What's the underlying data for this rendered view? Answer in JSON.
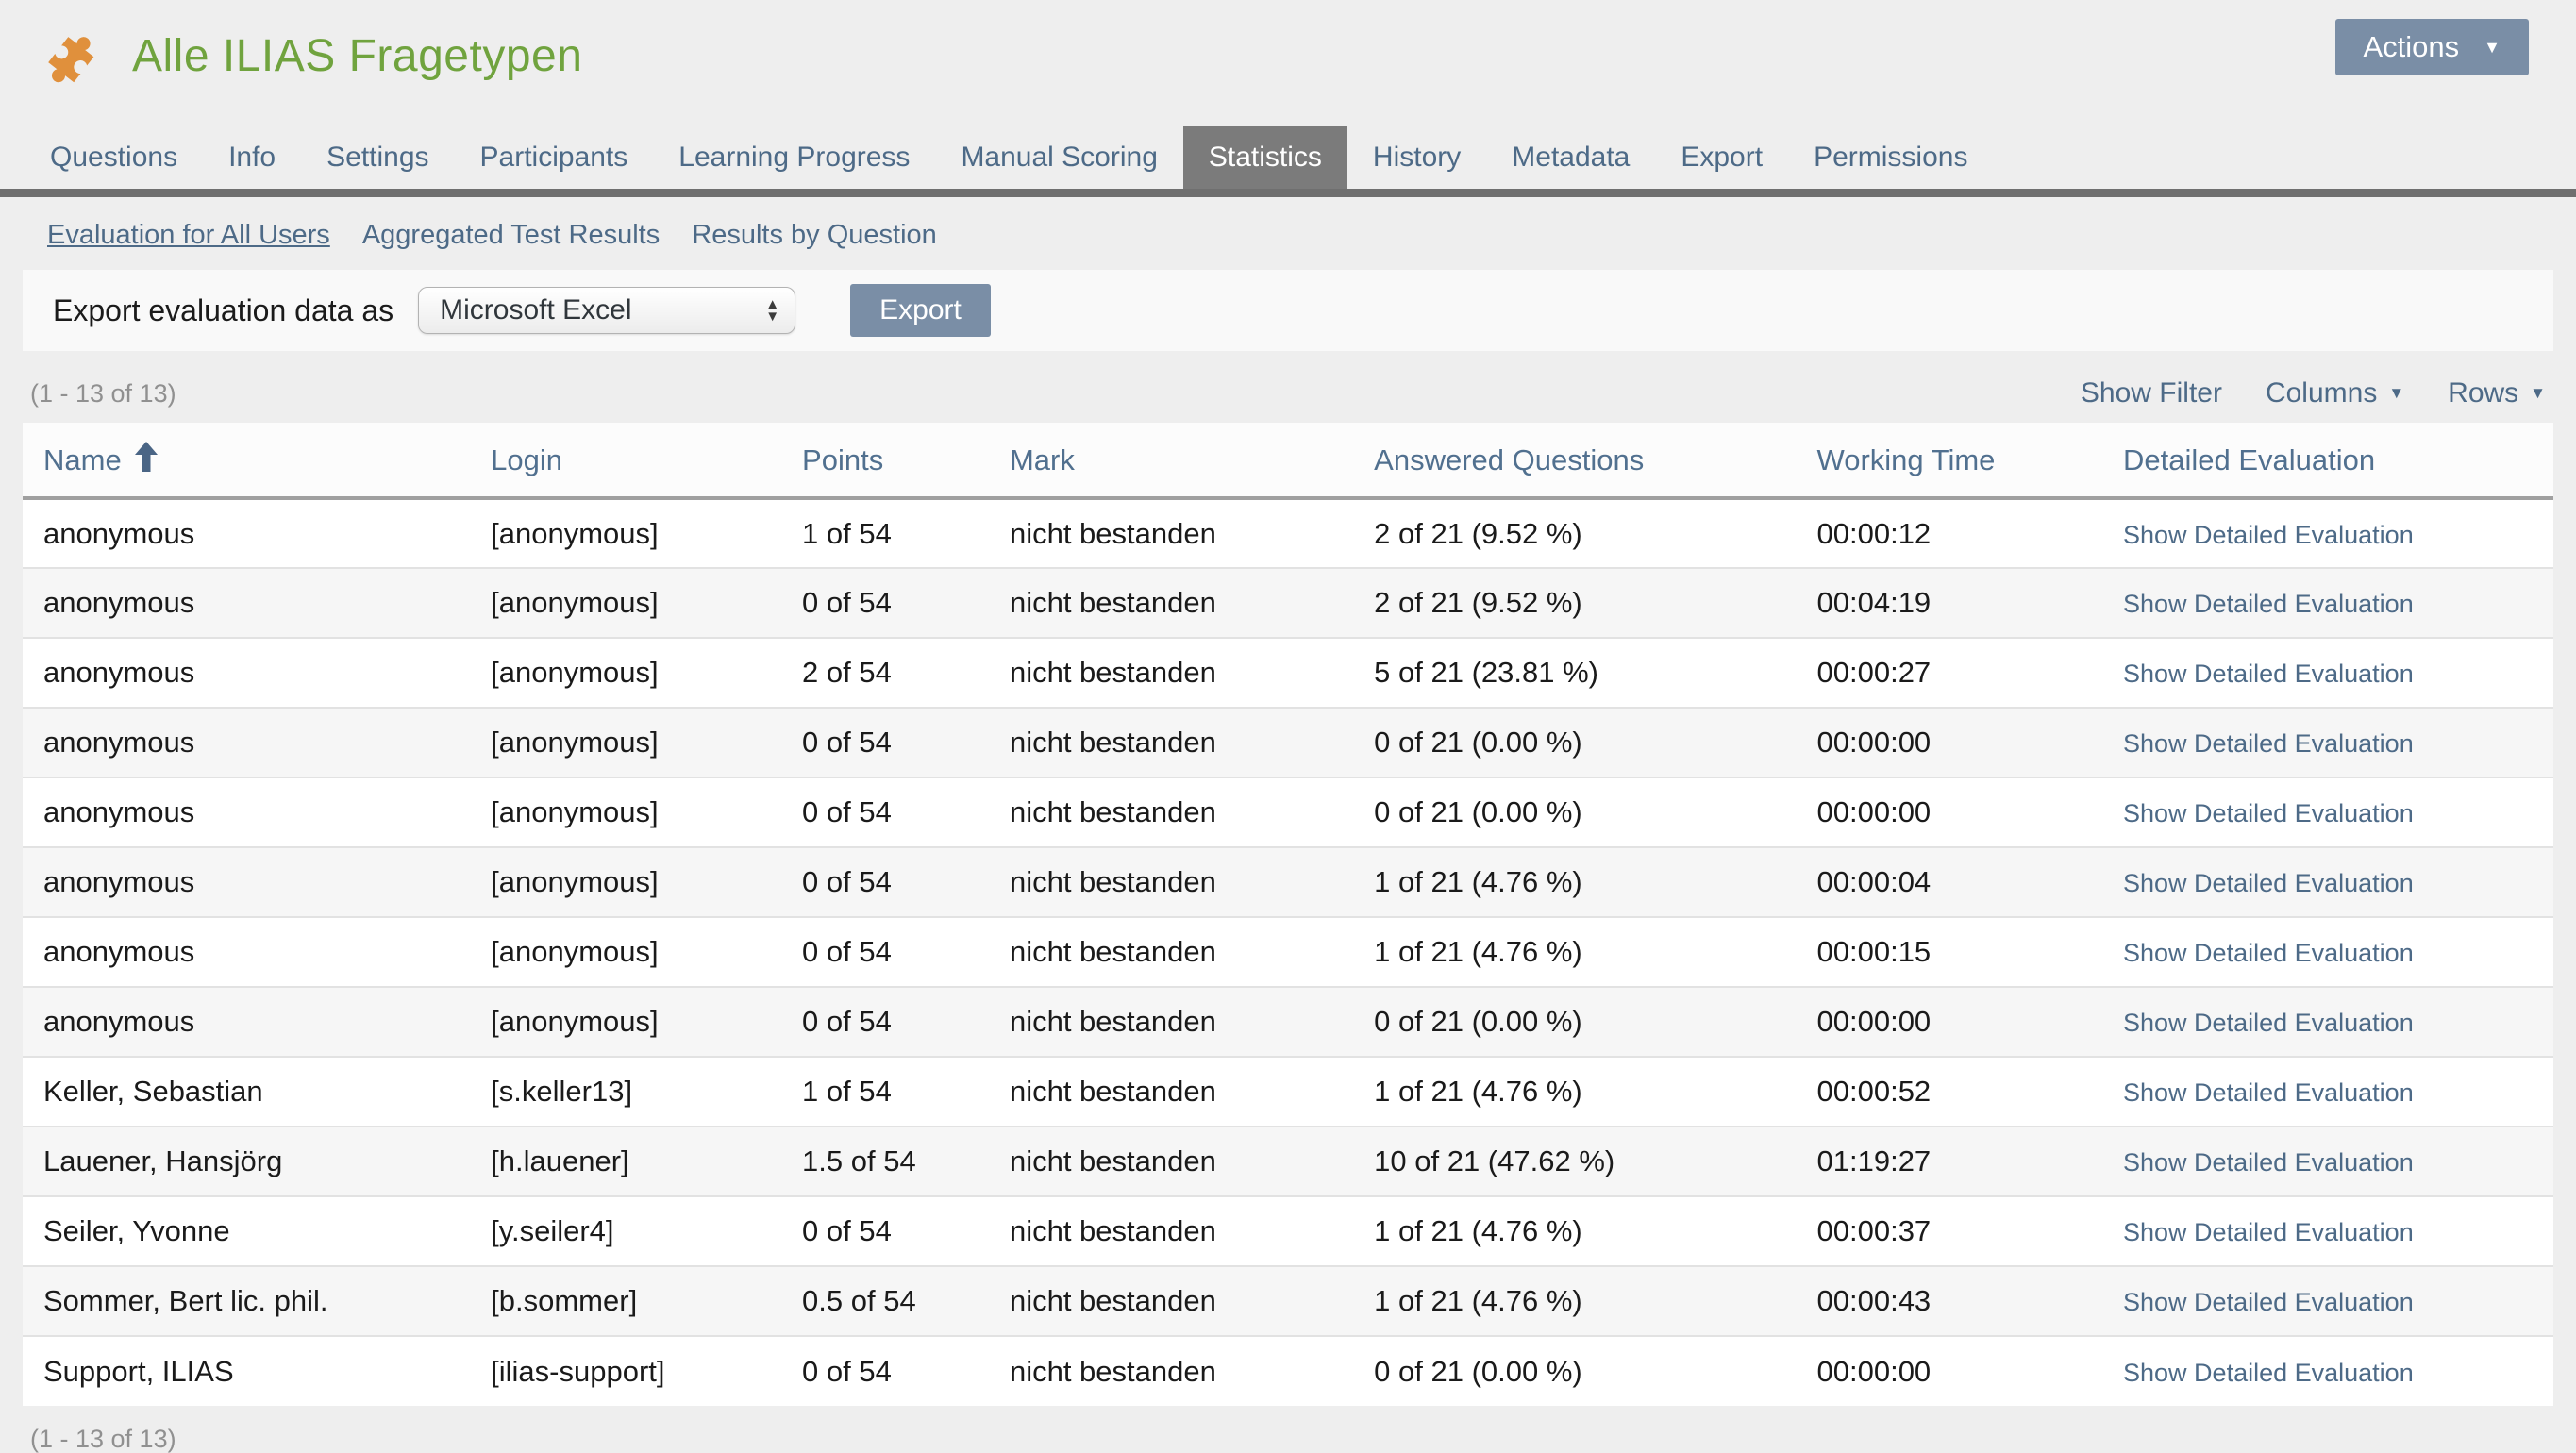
{
  "page": {
    "title": "Alle ILIAS Fragetypen"
  },
  "actions": {
    "label": "Actions"
  },
  "icons": {
    "caret_down": "▼",
    "spinner_up": "▲",
    "spinner_down": "▼",
    "logo": "puzzle-piece-icon",
    "sort": "sort-ascending-arrow-icon"
  },
  "colors": {
    "title_green": "#70a33e",
    "icon_orange": "#e0903c",
    "accent_blue": "#4d6a87",
    "button_blue": "#7a8ea6",
    "active_tab_gray": "#7b7b7b",
    "tab_bar_gray": "#6f6f6f"
  },
  "tabs": [
    {
      "label": "Questions",
      "active": false
    },
    {
      "label": "Info",
      "active": false
    },
    {
      "label": "Settings",
      "active": false
    },
    {
      "label": "Participants",
      "active": false
    },
    {
      "label": "Learning Progress",
      "active": false
    },
    {
      "label": "Manual Scoring",
      "active": false
    },
    {
      "label": "Statistics",
      "active": true
    },
    {
      "label": "History",
      "active": false
    },
    {
      "label": "Metadata",
      "active": false
    },
    {
      "label": "Export",
      "active": false
    },
    {
      "label": "Permissions",
      "active": false
    }
  ],
  "subtabs": [
    {
      "label": "Evaluation for All Users",
      "active": true
    },
    {
      "label": "Aggregated Test Results",
      "active": false
    },
    {
      "label": "Results by Question",
      "active": false
    }
  ],
  "export_bar": {
    "label": "Export evaluation data as",
    "select_value": "Microsoft Excel",
    "button_label": "Export"
  },
  "table": {
    "range_top": "(1 - 13 of 13)",
    "range_bottom": "(1 - 13 of 13)",
    "controls": {
      "show_filter": "Show Filter",
      "columns": "Columns",
      "rows": "Rows"
    },
    "columns": [
      "Name",
      "Login",
      "Points",
      "Mark",
      "Answered Questions",
      "Working Time",
      "Detailed Evaluation"
    ],
    "sort": {
      "column": "Name",
      "direction": "ascending"
    },
    "link_label": "Show Detailed Evaluation",
    "rows": [
      {
        "name": "anonymous",
        "login": "[anonymous]",
        "points": "1 of 54",
        "mark": "nicht bestanden",
        "answered": "2 of 21 (9.52 %)",
        "working_time": "00:00:12"
      },
      {
        "name": "anonymous",
        "login": "[anonymous]",
        "points": "0 of 54",
        "mark": "nicht bestanden",
        "answered": "2 of 21 (9.52 %)",
        "working_time": "00:04:19"
      },
      {
        "name": "anonymous",
        "login": "[anonymous]",
        "points": "2 of 54",
        "mark": "nicht bestanden",
        "answered": "5 of 21 (23.81 %)",
        "working_time": "00:00:27"
      },
      {
        "name": "anonymous",
        "login": "[anonymous]",
        "points": "0 of 54",
        "mark": "nicht bestanden",
        "answered": "0 of 21 (0.00 %)",
        "working_time": "00:00:00"
      },
      {
        "name": "anonymous",
        "login": "[anonymous]",
        "points": "0 of 54",
        "mark": "nicht bestanden",
        "answered": "0 of 21 (0.00 %)",
        "working_time": "00:00:00"
      },
      {
        "name": "anonymous",
        "login": "[anonymous]",
        "points": "0 of 54",
        "mark": "nicht bestanden",
        "answered": "1 of 21 (4.76 %)",
        "working_time": "00:00:04"
      },
      {
        "name": "anonymous",
        "login": "[anonymous]",
        "points": "0 of 54",
        "mark": "nicht bestanden",
        "answered": "1 of 21 (4.76 %)",
        "working_time": "00:00:15"
      },
      {
        "name": "anonymous",
        "login": "[anonymous]",
        "points": "0 of 54",
        "mark": "nicht bestanden",
        "answered": "0 of 21 (0.00 %)",
        "working_time": "00:00:00"
      },
      {
        "name": "Keller, Sebastian",
        "login": "[s.keller13]",
        "points": "1 of 54",
        "mark": "nicht bestanden",
        "answered": "1 of 21 (4.76 %)",
        "working_time": "00:00:52"
      },
      {
        "name": "Lauener, Hansjörg",
        "login": "[h.lauener]",
        "points": "1.5 of 54",
        "mark": "nicht bestanden",
        "answered": "10 of 21 (47.62 %)",
        "working_time": "01:19:27"
      },
      {
        "name": "Seiler, Yvonne",
        "login": "[y.seiler4]",
        "points": "0 of 54",
        "mark": "nicht bestanden",
        "answered": "1 of 21 (4.76 %)",
        "working_time": "00:00:37"
      },
      {
        "name": "Sommer, Bert lic. phil.",
        "login": "[b.sommer]",
        "points": "0.5 of 54",
        "mark": "nicht bestanden",
        "answered": "1 of 21 (4.76 %)",
        "working_time": "00:00:43"
      },
      {
        "name": "Support, ILIAS",
        "login": "[ilias-support]",
        "points": "0 of 54",
        "mark": "nicht bestanden",
        "answered": "0 of 21 (0.00 %)",
        "working_time": "00:00:00"
      }
    ]
  }
}
